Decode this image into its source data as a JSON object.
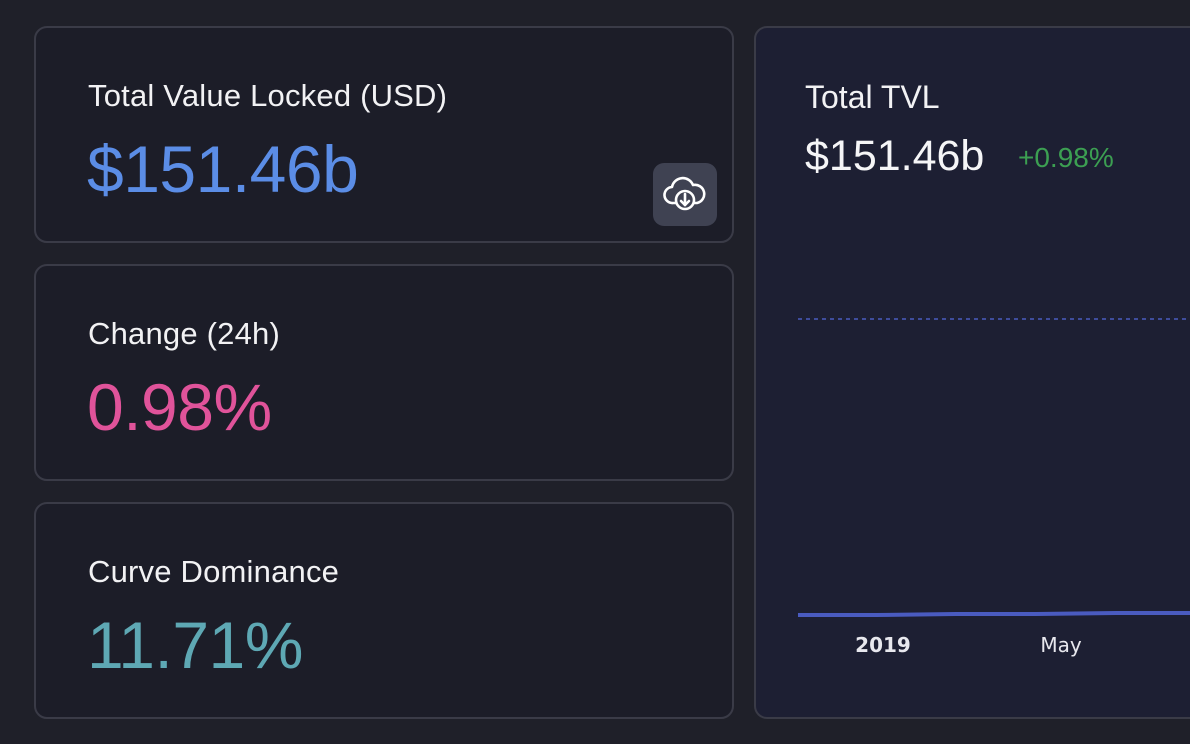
{
  "tvl_card": {
    "label": "Total Value Locked (USD)",
    "value": "$151.46b",
    "value_color": "#5b8de6",
    "download_icon": "cloud-download-icon"
  },
  "change_card": {
    "label": "Change (24h)",
    "value": "0.98%",
    "value_color": "#e0539a"
  },
  "dominance_card": {
    "label": "Curve Dominance",
    "value": "11.71%",
    "value_color": "#5ea8b4"
  },
  "chart": {
    "title": "Total TVL",
    "value": "$151.46b",
    "change": "+0.98%",
    "change_color": "#3c9f52",
    "line_color": "#4a5bc0",
    "chart_data": {
      "type": "area",
      "x_tick_labels": [
        "2019",
        "May"
      ],
      "grid": "dashed reference line"
    }
  }
}
